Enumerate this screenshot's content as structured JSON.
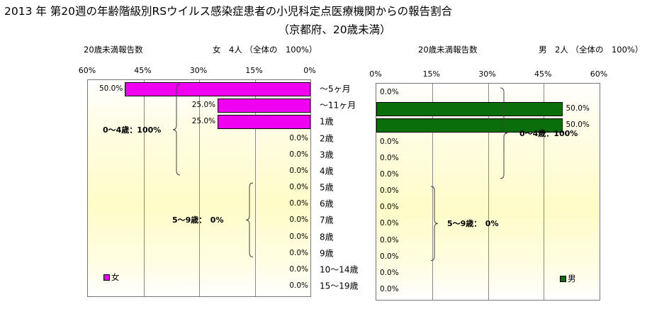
{
  "title": "2013 年 第20週の年齢階級別RSウイルス感染症患者の小児科定点医療機関からの報告割合",
  "subtitle": "（京都府、20歳未満）",
  "colors": {
    "female": "#f000f0",
    "male": "#0a6e0a",
    "grid": "#8a8a8a"
  },
  "chart_data": [
    {
      "type": "bar",
      "orientation": "horizontal",
      "header_label": "20歳未満報告数",
      "header_total": "女　4人 （全体の　100%）",
      "legend": "女",
      "categories": [
        "～5ヶ月",
        "～11ヶ月",
        "1歳",
        "2歳",
        "3歳",
        "4歳",
        "5歳",
        "6歳",
        "7歳",
        "8歳",
        "9歳",
        "10～14歳",
        "15～19歳"
      ],
      "values": [
        50.0,
        25.0,
        25.0,
        0.0,
        0.0,
        0.0,
        0.0,
        0.0,
        0.0,
        0.0,
        0.0,
        0.0,
        0.0
      ],
      "value_labels": [
        "50.0%",
        "25.0%",
        "25.0%",
        "0.0%",
        "0.0%",
        "0.0%",
        "0.0%",
        "0.0%",
        "0.0%",
        "0.0%",
        "0.0%",
        "0.0%",
        "0.0%"
      ],
      "xlim": [
        0,
        60
      ],
      "x_reversed": true,
      "ticks": [
        "0%",
        "15%",
        "30%",
        "45%",
        "60%"
      ],
      "groups": [
        {
          "label": "0～4歳：100%",
          "from": 0,
          "to": 5
        },
        {
          "label": "5～9歳：　0%",
          "from": 6,
          "to": 10
        }
      ]
    },
    {
      "type": "bar",
      "orientation": "horizontal",
      "header_label": "20歳未満報告数",
      "header_total": "男　2人 （全体の　100%）",
      "legend": "男",
      "categories": [
        "～5ヶ月",
        "～11ヶ月",
        "1歳",
        "2歳",
        "3歳",
        "4歳",
        "5歳",
        "6歳",
        "7歳",
        "8歳",
        "9歳",
        "10～14歳",
        "15～19歳"
      ],
      "values": [
        0.0,
        50.0,
        50.0,
        0.0,
        0.0,
        0.0,
        0.0,
        0.0,
        0.0,
        0.0,
        0.0,
        0.0,
        0.0
      ],
      "value_labels": [
        "0.0%",
        "50.0%",
        "50.0%",
        "0.0%",
        "0.0%",
        "0.0%",
        "0.0%",
        "0.0%",
        "0.0%",
        "0.0%",
        "0.0%",
        "0.0%",
        "0.0%"
      ],
      "xlim": [
        0,
        60
      ],
      "x_reversed": false,
      "ticks": [
        "0%",
        "15%",
        "30%",
        "45%",
        "60%"
      ],
      "groups": [
        {
          "label": "0～4歳：100%",
          "from": 0,
          "to": 5
        },
        {
          "label": "5～9歳：　0%",
          "from": 6,
          "to": 10
        }
      ]
    }
  ]
}
